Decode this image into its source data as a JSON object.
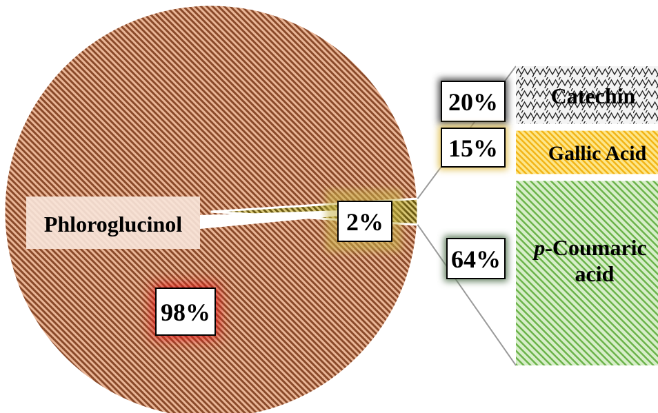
{
  "chart_data": {
    "type": "pie",
    "subtype": "bar-of-pie",
    "pie": [
      {
        "name": "Phloroglucinol",
        "value": 98,
        "label": "98%",
        "color": "#d98a5a"
      },
      {
        "name": "",
        "value": 2,
        "label": "2%",
        "color": "#b9a238"
      }
    ],
    "breakdown_of": "2%",
    "bar_segments": [
      {
        "name": "Catechin",
        "value": 20,
        "label": "20%",
        "color": "#cfcfcf",
        "glow": "#444444"
      },
      {
        "name": "Gallic Acid",
        "value": 15,
        "label": "15%",
        "color": "#f5c518",
        "glow": "#e3c35a"
      },
      {
        "name_prefix": "p",
        "name": "-Coumaric acid",
        "name_line1": "-Coumaric",
        "name_line2": "acid",
        "value": 64,
        "label": "64%",
        "color": "#8cc66b",
        "glow": "#5f7d5b"
      }
    ],
    "title": "",
    "legend": "none"
  }
}
